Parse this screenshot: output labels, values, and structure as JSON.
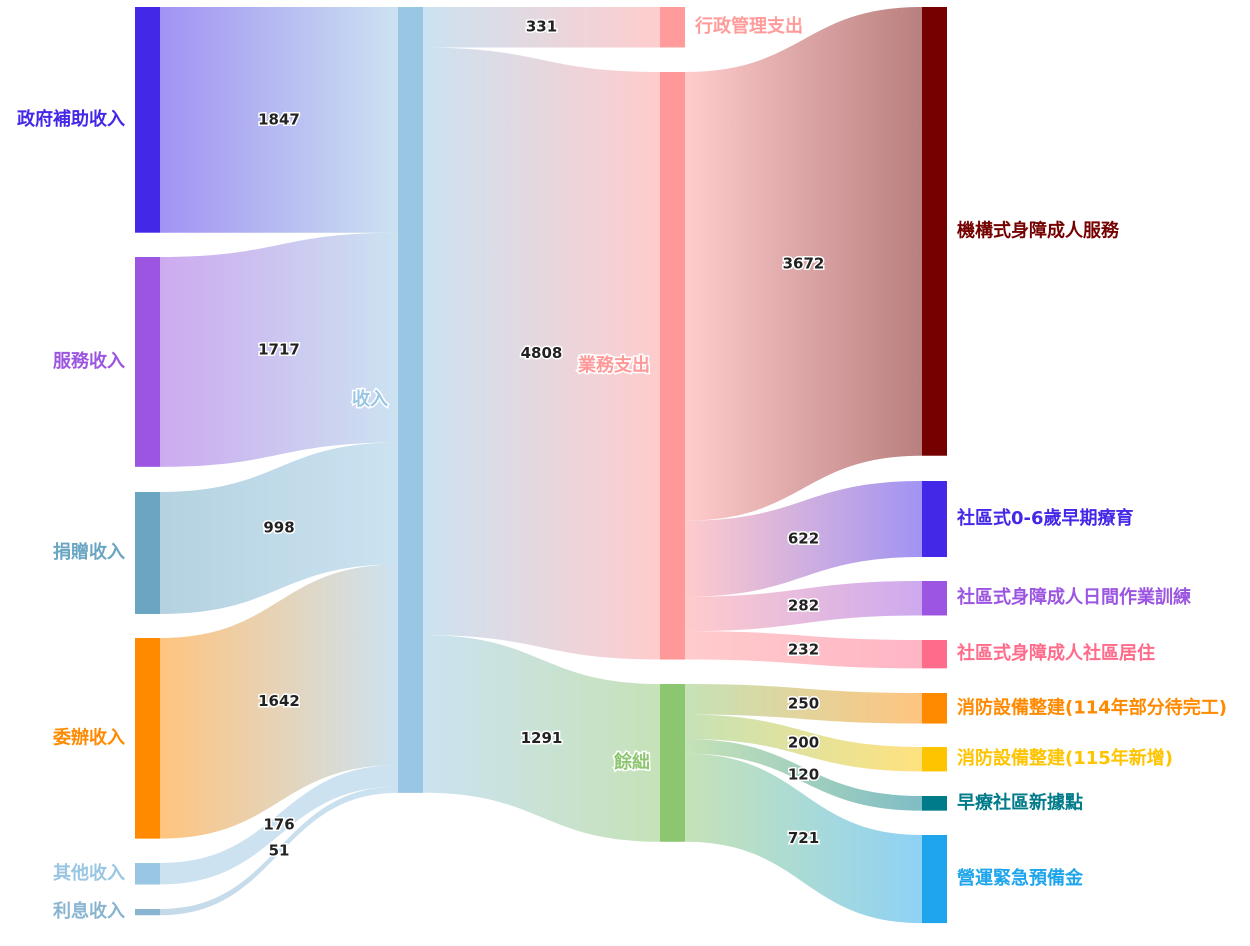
{
  "chart_data": {
    "type": "sankey",
    "nodes": [
      {
        "name": "政府補助收入",
        "color": "#4428e8"
      },
      {
        "name": "服務收入",
        "color": "#9b55e0"
      },
      {
        "name": "捐贈收入",
        "color": "#6aa5c2"
      },
      {
        "name": "委辦收入",
        "color": "#ff8a00"
      },
      {
        "name": "其他收入",
        "color": "#99c6e3"
      },
      {
        "name": "利息收入",
        "color": "#88b4d0"
      },
      {
        "name": "收入",
        "color": "#99c6e3"
      },
      {
        "name": "行政管理支出",
        "color": "#ff9b9b"
      },
      {
        "name": "業務支出",
        "color": "#ff9999"
      },
      {
        "name": "餘絀",
        "color": "#8dc670"
      },
      {
        "name": "機構式身障成人服務",
        "color": "#750000"
      },
      {
        "name": "社區式0-6歲早期療育",
        "color": "#4428e8"
      },
      {
        "name": "社區式身障成人日間作業訓練",
        "color": "#9b55e0"
      },
      {
        "name": "社區式身障成人社區居住",
        "color": "#ff6b8a"
      },
      {
        "name": "消防設備整建(114年部分待完工)",
        "color": "#ff8a00"
      },
      {
        "name": "消防設備整建(115年新增)",
        "color": "#ffc400"
      },
      {
        "name": "早療社區新據點",
        "color": "#007b8a"
      },
      {
        "name": "營運緊急預備金",
        "color": "#1ea5ec"
      }
    ],
    "links": [
      {
        "source": "政府補助收入",
        "target": "收入",
        "value": 1847
      },
      {
        "source": "服務收入",
        "target": "收入",
        "value": 1717
      },
      {
        "source": "捐贈收入",
        "target": "收入",
        "value": 998
      },
      {
        "source": "委辦收入",
        "target": "收入",
        "value": 1642
      },
      {
        "source": "其他收入",
        "target": "收入",
        "value": 176
      },
      {
        "source": "利息收入",
        "target": "收入",
        "value": 51
      },
      {
        "source": "收入",
        "target": "行政管理支出",
        "value": 331
      },
      {
        "source": "收入",
        "target": "業務支出",
        "value": 4808
      },
      {
        "source": "收入",
        "target": "餘絀",
        "value": 1291
      },
      {
        "source": "業務支出",
        "target": "機構式身障成人服務",
        "value": 3672
      },
      {
        "source": "業務支出",
        "target": "社區式0-6歲早期療育",
        "value": 622
      },
      {
        "source": "業務支出",
        "target": "社區式身障成人日間作業訓練",
        "value": 282
      },
      {
        "source": "業務支出",
        "target": "社區式身障成人社區居住",
        "value": 232
      },
      {
        "source": "餘絀",
        "target": "消防設備整建(114年部分待完工)",
        "value": 250
      },
      {
        "source": "餘絀",
        "target": "消防設備整建(115年新增)",
        "value": 200
      },
      {
        "source": "餘絀",
        "target": "早療社區新據點",
        "value": 120
      },
      {
        "source": "餘絀",
        "target": "營運緊急預備金",
        "value": 721
      }
    ]
  }
}
